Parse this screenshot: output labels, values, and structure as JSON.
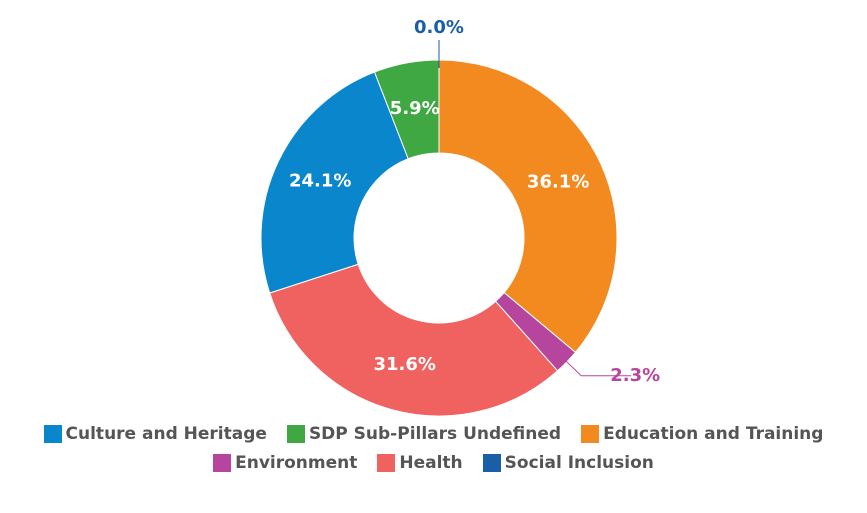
{
  "chart_data": {
    "type": "pie",
    "categories": [
      "Education and Training",
      "Environment",
      "Health",
      "Culture and Heritage",
      "SDP Sub-Pillars Undefined",
      "Social Inclusion"
    ],
    "values": [
      36.1,
      2.3,
      31.6,
      24.1,
      5.9,
      0.0
    ],
    "value_labels": [
      "36.1%",
      "2.3%",
      "31.6%",
      "24.1%",
      "5.9%",
      "0.0%"
    ],
    "colors": [
      "#f28a1f",
      "#b6469d",
      "#f0625f",
      "#0a87cc",
      "#3fa843",
      "#1a5ea8"
    ],
    "donut": true,
    "legend": "bottom"
  }
}
